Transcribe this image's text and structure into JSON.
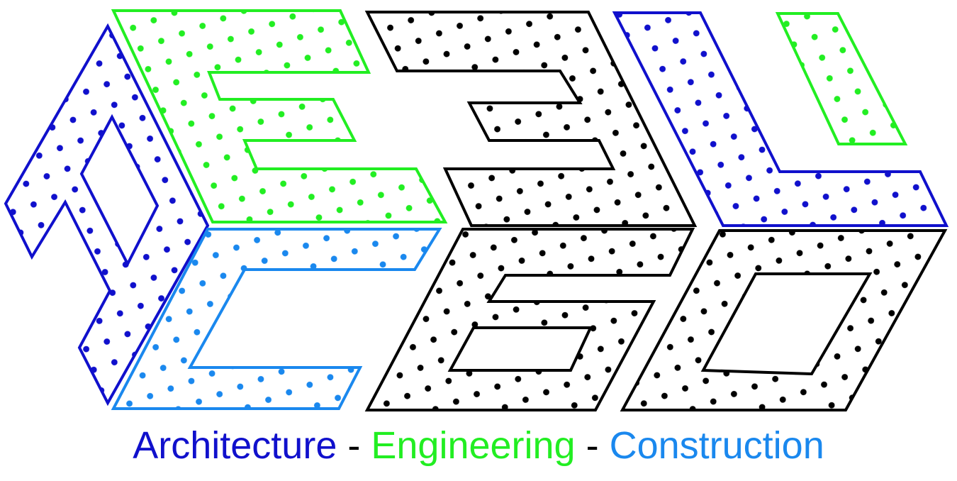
{
  "colors": {
    "architecture": "#1010cc",
    "engineering": "#22ee22",
    "construction": "#1a88ee",
    "monochrome": "#000000",
    "background": "#ffffff"
  },
  "tagline": {
    "architecture": "Architecture",
    "separator_1": " - ",
    "engineering": "Engineering",
    "separator_2": " - ",
    "construction": "Construction"
  }
}
